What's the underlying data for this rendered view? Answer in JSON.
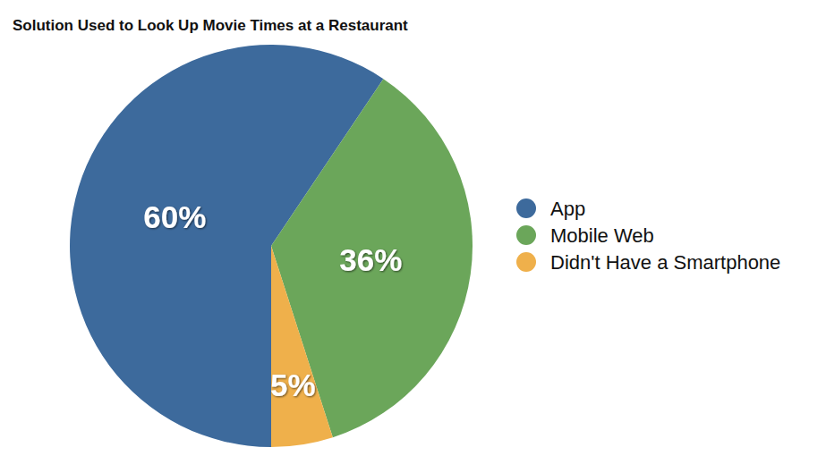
{
  "chart_data": {
    "type": "pie",
    "title": "Solution Used to Look Up Movie Times at a Restaurant",
    "categories": [
      "App",
      "Mobile Web",
      "Didn't Have a Smartphone"
    ],
    "values": [
      60,
      36,
      5
    ],
    "value_labels": [
      "60%",
      "36%",
      "5%"
    ],
    "colors": [
      "#3d6a9c",
      "#6ba65a",
      "#efb04b"
    ],
    "data_labels": true,
    "legend": "right"
  }
}
